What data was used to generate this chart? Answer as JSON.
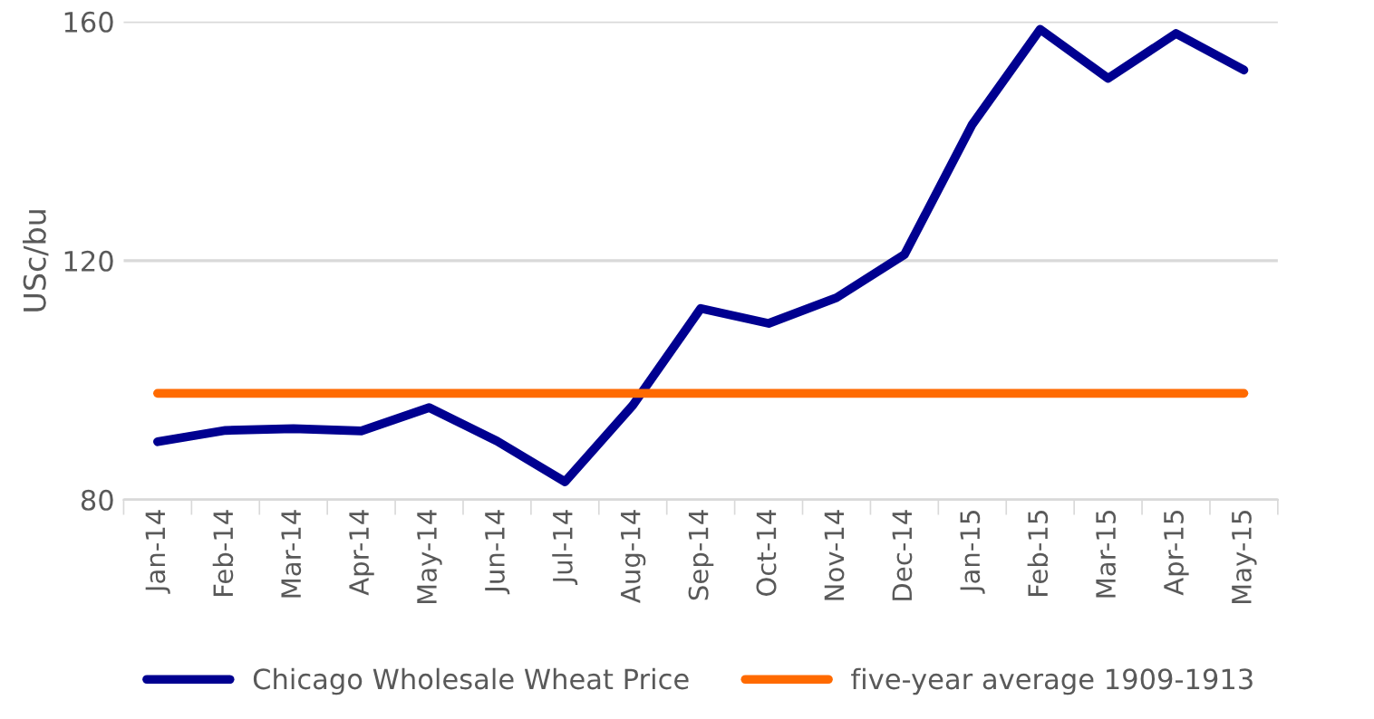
{
  "chart_data": {
    "type": "line",
    "ylabel": "USc/bu",
    "categories": [
      "Jan-14",
      "Feb-14",
      "Mar-14",
      "Apr-14",
      "May-14",
      "Jun-14",
      "Jul-14",
      "Aug-14",
      "Sep-14",
      "Oct-14",
      "Nov-14",
      "Dec-14",
      "Jan-15",
      "Feb-15",
      "Mar-15",
      "Apr-15",
      "May-15"
    ],
    "series": [
      {
        "name": "Chicago Wholesale Wheat Price",
        "color": "#000090",
        "values": [
          89.7,
          91.6,
          91.9,
          91.5,
          95.4,
          89.8,
          83,
          95.8,
          112,
          109.5,
          113.8,
          121,
          142.8,
          158.7,
          150.5,
          158,
          151.9
        ]
      },
      {
        "name": "five-year average 1909-1913",
        "color": "#ff6a00",
        "values": [
          97.8,
          97.8,
          97.8,
          97.8,
          97.8,
          97.8,
          97.8,
          97.8,
          97.8,
          97.8,
          97.8,
          97.8,
          97.8,
          97.8,
          97.8,
          97.8,
          97.8
        ]
      }
    ],
    "ylim": [
      80,
      160
    ],
    "yticks": [
      80,
      120,
      160
    ],
    "grid": "y",
    "legend": "bottom",
    "marker": "none",
    "line_style": "solid"
  }
}
